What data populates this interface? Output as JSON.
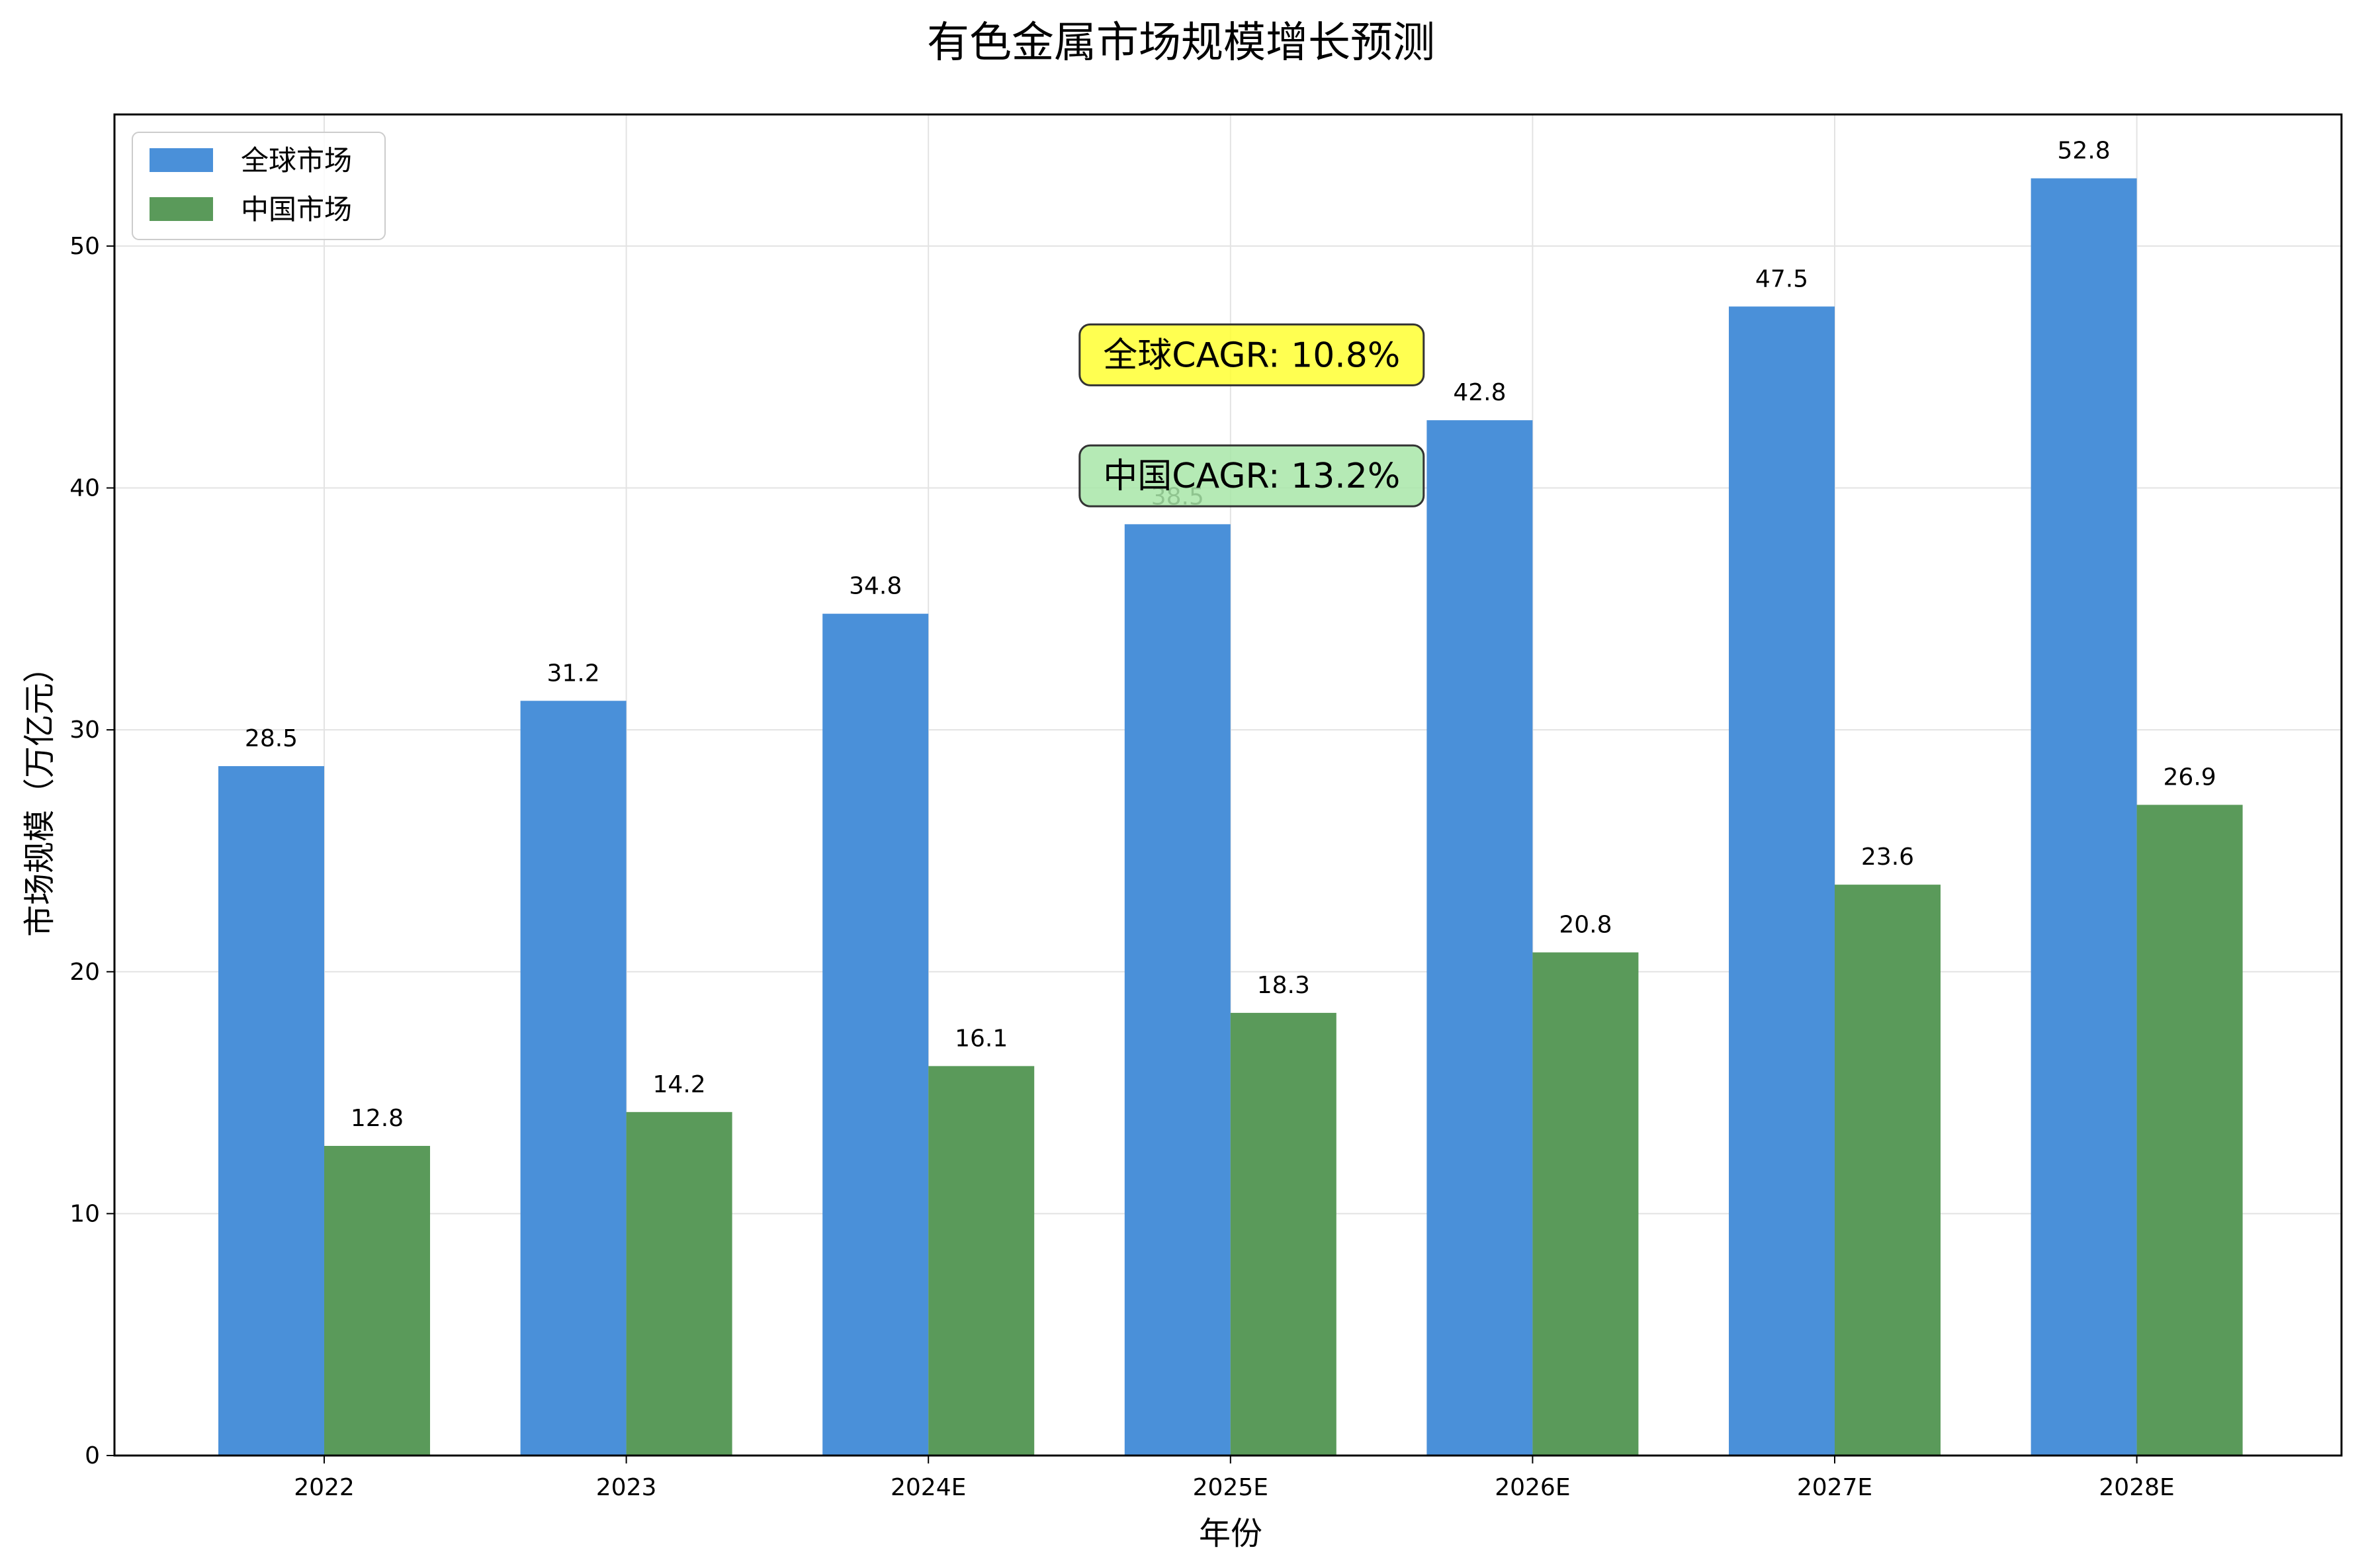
{
  "chart_data": {
    "type": "bar",
    "title": "有色金属市场规模增长预测",
    "xlabel": "年份",
    "ylabel": "市场规模（万亿元）",
    "categories": [
      "2022",
      "2023",
      "2024E",
      "2025E",
      "2026E",
      "2027E",
      "2028E"
    ],
    "series": [
      {
        "name": "全球市场",
        "color": "#4a90d9",
        "values": [
          28.5,
          31.2,
          34.8,
          38.5,
          42.8,
          47.5,
          52.8
        ],
        "labels": [
          "28.5",
          "31.2",
          "34.8",
          "38.5",
          "42.8",
          "47.5",
          "52.8"
        ]
      },
      {
        "name": "中国市场",
        "color": "#5a9a5a",
        "values": [
          12.8,
          14.2,
          16.1,
          18.3,
          20.8,
          23.6,
          26.9
        ],
        "labels": [
          "12.8",
          "14.2",
          "16.1",
          "18.3",
          "20.8",
          "23.6",
          "26.9"
        ]
      }
    ],
    "ylim": [
      0,
      55.44
    ],
    "yticks": [
      0,
      10,
      20,
      30,
      40,
      50
    ],
    "grid": true,
    "legend_position": "top-left",
    "annotations": [
      {
        "text": "全球CAGR: 10.8%",
        "bg_color": "#ffff33",
        "anchor_category": "2025E",
        "anchor_value": 45.5
      },
      {
        "text": "中国CAGR: 13.2%",
        "bg_color": "#a8e6a8",
        "anchor_category": "2025E",
        "anchor_value": 40.5
      }
    ]
  }
}
